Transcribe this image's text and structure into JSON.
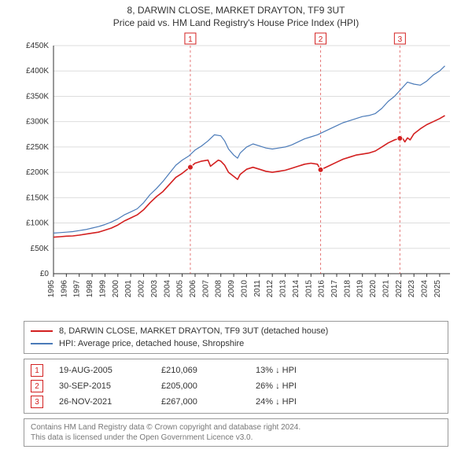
{
  "title_line1": "8, DARWIN CLOSE, MARKET DRAYTON, TF9 3UT",
  "title_line2": "Price paid vs. HM Land Registry's House Price Index (HPI)",
  "chart": {
    "type": "line",
    "xlim": [
      1995,
      2025.8
    ],
    "ylim": [
      0,
      450000
    ],
    "ytick_step": 50000,
    "xticks": [
      1995,
      1996,
      1997,
      1998,
      1999,
      2000,
      2001,
      2002,
      2003,
      2004,
      2005,
      2006,
      2007,
      2008,
      2009,
      2010,
      2011,
      2012,
      2013,
      2014,
      2015,
      2016,
      2017,
      2018,
      2019,
      2020,
      2021,
      2022,
      2023,
      2024,
      2025
    ],
    "ytick_labels": [
      "£0",
      "£50K",
      "£100K",
      "£150K",
      "£200K",
      "£250K",
      "£300K",
      "£350K",
      "£400K",
      "£450K"
    ],
    "grid_color": "#dddddd",
    "background_color": "#ffffff",
    "series": [
      {
        "name": "property",
        "label": "8, DARWIN CLOSE, MARKET DRAYTON, TF9 3UT (detached house)",
        "color": "#d32020",
        "width": 1.6,
        "data": [
          [
            1995.0,
            72000
          ],
          [
            1995.5,
            73000
          ],
          [
            1996.0,
            74000
          ],
          [
            1996.5,
            74500
          ],
          [
            1997.0,
            76000
          ],
          [
            1997.5,
            78000
          ],
          [
            1998.0,
            80000
          ],
          [
            1998.5,
            82000
          ],
          [
            1999.0,
            86000
          ],
          [
            1999.5,
            90000
          ],
          [
            2000.0,
            96000
          ],
          [
            2000.5,
            104000
          ],
          [
            2001.0,
            110000
          ],
          [
            2001.5,
            116000
          ],
          [
            2002.0,
            126000
          ],
          [
            2002.5,
            140000
          ],
          [
            2003.0,
            152000
          ],
          [
            2003.5,
            162000
          ],
          [
            2004.0,
            176000
          ],
          [
            2004.5,
            190000
          ],
          [
            2005.0,
            198000
          ],
          [
            2005.3,
            204000
          ],
          [
            2005.4,
            206000
          ],
          [
            2005.5,
            209000
          ],
          [
            2005.63,
            210069
          ],
          [
            2006.0,
            218000
          ],
          [
            2006.5,
            222000
          ],
          [
            2007.0,
            224000
          ],
          [
            2007.2,
            212000
          ],
          [
            2007.5,
            218000
          ],
          [
            2007.8,
            224000
          ],
          [
            2008.0,
            222000
          ],
          [
            2008.3,
            214000
          ],
          [
            2008.6,
            200000
          ],
          [
            2009.0,
            192000
          ],
          [
            2009.3,
            186000
          ],
          [
            2009.5,
            196000
          ],
          [
            2010.0,
            206000
          ],
          [
            2010.5,
            210000
          ],
          [
            2011.0,
            206000
          ],
          [
            2011.5,
            202000
          ],
          [
            2012.0,
            200000
          ],
          [
            2012.5,
            202000
          ],
          [
            2013.0,
            204000
          ],
          [
            2013.5,
            208000
          ],
          [
            2014.0,
            212000
          ],
          [
            2014.5,
            216000
          ],
          [
            2015.0,
            218000
          ],
          [
            2015.5,
            216000
          ],
          [
            2015.75,
            205000
          ],
          [
            2016.0,
            208000
          ],
          [
            2016.5,
            214000
          ],
          [
            2017.0,
            220000
          ],
          [
            2017.5,
            226000
          ],
          [
            2018.0,
            230000
          ],
          [
            2018.5,
            234000
          ],
          [
            2019.0,
            236000
          ],
          [
            2019.5,
            238000
          ],
          [
            2020.0,
            242000
          ],
          [
            2020.5,
            250000
          ],
          [
            2021.0,
            258000
          ],
          [
            2021.5,
            264000
          ],
          [
            2021.9,
            267000
          ],
          [
            2022.0,
            272000
          ],
          [
            2022.3,
            260000
          ],
          [
            2022.5,
            268000
          ],
          [
            2022.7,
            264000
          ],
          [
            2023.0,
            276000
          ],
          [
            2023.5,
            286000
          ],
          [
            2024.0,
            294000
          ],
          [
            2024.5,
            300000
          ],
          [
            2025.0,
            306000
          ],
          [
            2025.4,
            312000
          ]
        ]
      },
      {
        "name": "hpi",
        "label": "HPI: Average price, detached house, Shropshire",
        "color": "#4a7ab8",
        "width": 1.2,
        "data": [
          [
            1995.0,
            80000
          ],
          [
            1995.5,
            81000
          ],
          [
            1996.0,
            82000
          ],
          [
            1996.5,
            83000
          ],
          [
            1997.0,
            85000
          ],
          [
            1997.5,
            87000
          ],
          [
            1998.0,
            90000
          ],
          [
            1998.5,
            93000
          ],
          [
            1999.0,
            97000
          ],
          [
            1999.5,
            102000
          ],
          [
            2000.0,
            108000
          ],
          [
            2000.5,
            116000
          ],
          [
            2001.0,
            122000
          ],
          [
            2001.5,
            128000
          ],
          [
            2002.0,
            140000
          ],
          [
            2002.5,
            156000
          ],
          [
            2003.0,
            168000
          ],
          [
            2003.5,
            182000
          ],
          [
            2004.0,
            198000
          ],
          [
            2004.5,
            214000
          ],
          [
            2005.0,
            224000
          ],
          [
            2005.5,
            232000
          ],
          [
            2006.0,
            244000
          ],
          [
            2006.5,
            252000
          ],
          [
            2007.0,
            262000
          ],
          [
            2007.5,
            274000
          ],
          [
            2008.0,
            272000
          ],
          [
            2008.3,
            262000
          ],
          [
            2008.6,
            246000
          ],
          [
            2009.0,
            234000
          ],
          [
            2009.3,
            228000
          ],
          [
            2009.5,
            238000
          ],
          [
            2010.0,
            250000
          ],
          [
            2010.5,
            256000
          ],
          [
            2011.0,
            252000
          ],
          [
            2011.5,
            248000
          ],
          [
            2012.0,
            246000
          ],
          [
            2012.5,
            248000
          ],
          [
            2013.0,
            250000
          ],
          [
            2013.5,
            254000
          ],
          [
            2014.0,
            260000
          ],
          [
            2014.5,
            266000
          ],
          [
            2015.0,
            270000
          ],
          [
            2015.5,
            274000
          ],
          [
            2016.0,
            280000
          ],
          [
            2016.5,
            286000
          ],
          [
            2017.0,
            292000
          ],
          [
            2017.5,
            298000
          ],
          [
            2018.0,
            302000
          ],
          [
            2018.5,
            306000
          ],
          [
            2019.0,
            310000
          ],
          [
            2019.5,
            312000
          ],
          [
            2020.0,
            316000
          ],
          [
            2020.5,
            326000
          ],
          [
            2021.0,
            340000
          ],
          [
            2021.5,
            350000
          ],
          [
            2022.0,
            364000
          ],
          [
            2022.5,
            378000
          ],
          [
            2023.0,
            374000
          ],
          [
            2023.5,
            372000
          ],
          [
            2024.0,
            380000
          ],
          [
            2024.5,
            392000
          ],
          [
            2025.0,
            400000
          ],
          [
            2025.4,
            410000
          ]
        ]
      }
    ],
    "markers": [
      {
        "n": "1",
        "x": 2005.63,
        "y": 210069,
        "line_color": "#d32020"
      },
      {
        "n": "2",
        "x": 2015.75,
        "y": 205000,
        "line_color": "#d32020"
      },
      {
        "n": "3",
        "x": 2021.91,
        "y": 267000,
        "line_color": "#d32020"
      }
    ],
    "marker_badge_border": "#d32020",
    "marker_badge_text": "#d32020",
    "marker_line_dash": "3,3"
  },
  "legend_box_border": "#999999",
  "events": [
    {
      "n": "1",
      "date": "19-AUG-2005",
      "price": "£210,069",
      "delta": "13% ↓ HPI"
    },
    {
      "n": "2",
      "date": "30-SEP-2015",
      "price": "£205,000",
      "delta": "26% ↓ HPI"
    },
    {
      "n": "3",
      "date": "26-NOV-2021",
      "price": "£267,000",
      "delta": "24% ↓ HPI"
    }
  ],
  "footer_line1": "Contains HM Land Registry data © Crown copyright and database right 2024.",
  "footer_line2": "This data is licensed under the Open Government Licence v3.0."
}
